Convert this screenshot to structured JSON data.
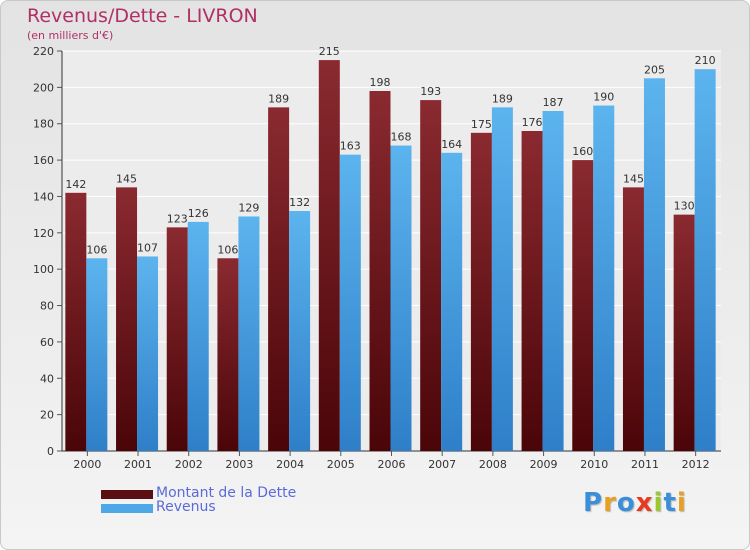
{
  "chart_data": {
    "type": "bar",
    "title": "Revenus/Dette - LIVRON",
    "subtitle": "(en milliers d'€)",
    "categories": [
      "2000",
      "2001",
      "2002",
      "2003",
      "2004",
      "2005",
      "2006",
      "2007",
      "2008",
      "2009",
      "2010",
      "2011",
      "2012"
    ],
    "series": [
      {
        "name": "Montant de la Dette",
        "color": "#7a1f22",
        "values": [
          142,
          145,
          123,
          106,
          189,
          215,
          198,
          193,
          175,
          176,
          160,
          145,
          130
        ]
      },
      {
        "name": "Revenus",
        "color": "#4ea8e8",
        "values": [
          106,
          107,
          126,
          129,
          132,
          163,
          168,
          164,
          189,
          187,
          190,
          205,
          210
        ]
      }
    ],
    "ylim": [
      0,
      220
    ],
    "yticks": [
      0,
      20,
      40,
      60,
      80,
      100,
      120,
      140,
      160,
      180,
      200,
      220
    ],
    "grid": true,
    "legend_position": "bottom-left"
  },
  "logo": {
    "letters": [
      "P",
      "r",
      "o",
      "x",
      "i",
      "t",
      "i"
    ],
    "colors": [
      "#3a8fd8",
      "#e8a020",
      "#3a8fd8",
      "#e83a20",
      "#9ac830",
      "#3a8fd8",
      "#e8a020"
    ]
  }
}
